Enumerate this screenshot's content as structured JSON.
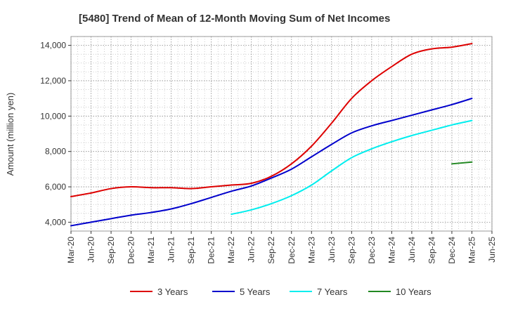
{
  "chart_data": {
    "type": "line",
    "title": "[5480]  Trend of Mean of 12-Month Moving Sum of Net Incomes",
    "xlabel": "",
    "ylabel": "Amount (million yen)",
    "ylim": [
      3500,
      14500
    ],
    "yticks": [
      4000,
      6000,
      8000,
      10000,
      12000,
      14000
    ],
    "ytick_labels": [
      "4,000",
      "6,000",
      "8,000",
      "10,000",
      "12,000",
      "14,000"
    ],
    "x_tick_labels": [
      "Mar-20",
      "Jun-20",
      "Sep-20",
      "Dec-20",
      "Mar-21",
      "Jun-21",
      "Sep-21",
      "Dec-21",
      "Mar-22",
      "Jun-22",
      "Sep-22",
      "Dec-22",
      "Mar-23",
      "Jun-23",
      "Sep-23",
      "Dec-23",
      "Mar-24",
      "Jun-24",
      "Sep-24",
      "Dec-24",
      "Mar-25",
      "Jun-25"
    ],
    "grid": true,
    "legend_position": "bottom",
    "series": [
      {
        "name": "3 Years",
        "color": "#dd0000",
        "x": [
          "Mar-20",
          "Jun-20",
          "Sep-20",
          "Dec-20",
          "Mar-21",
          "Jun-21",
          "Sep-21",
          "Dec-21",
          "Mar-22",
          "Jun-22",
          "Sep-22",
          "Dec-22",
          "Mar-23",
          "Jun-23",
          "Sep-23",
          "Dec-23",
          "Mar-24",
          "Jun-24",
          "Sep-24",
          "Dec-24",
          "Mar-25"
        ],
        "values": [
          5450,
          5650,
          5900,
          6000,
          5950,
          5950,
          5900,
          6000,
          6100,
          6200,
          6600,
          7300,
          8300,
          9600,
          11000,
          12000,
          12800,
          13500,
          13800,
          13900,
          14100
        ]
      },
      {
        "name": "5 Years",
        "color": "#0000cc",
        "x": [
          "Mar-20",
          "Jun-20",
          "Sep-20",
          "Dec-20",
          "Mar-21",
          "Jun-21",
          "Sep-21",
          "Dec-21",
          "Mar-22",
          "Jun-22",
          "Sep-22",
          "Dec-22",
          "Mar-23",
          "Jun-23",
          "Sep-23",
          "Dec-23",
          "Mar-24",
          "Jun-24",
          "Sep-24",
          "Dec-24",
          "Mar-25"
        ],
        "values": [
          3800,
          4000,
          4200,
          4400,
          4550,
          4750,
          5050,
          5400,
          5750,
          6050,
          6500,
          7000,
          7700,
          8400,
          9050,
          9450,
          9750,
          10050,
          10350,
          10650,
          11000
        ]
      },
      {
        "name": "7 Years",
        "color": "#00eeee",
        "x": [
          "Mar-22",
          "Jun-22",
          "Sep-22",
          "Dec-22",
          "Mar-23",
          "Jun-23",
          "Sep-23",
          "Dec-23",
          "Mar-24",
          "Jun-24",
          "Sep-24",
          "Dec-24",
          "Mar-25"
        ],
        "values": [
          4450,
          4700,
          5050,
          5500,
          6100,
          6900,
          7650,
          8150,
          8550,
          8900,
          9200,
          9500,
          9750
        ]
      },
      {
        "name": "10 Years",
        "color": "#228822",
        "x": [
          "Dec-24",
          "Mar-25"
        ],
        "values": [
          7300,
          7400
        ]
      }
    ]
  }
}
